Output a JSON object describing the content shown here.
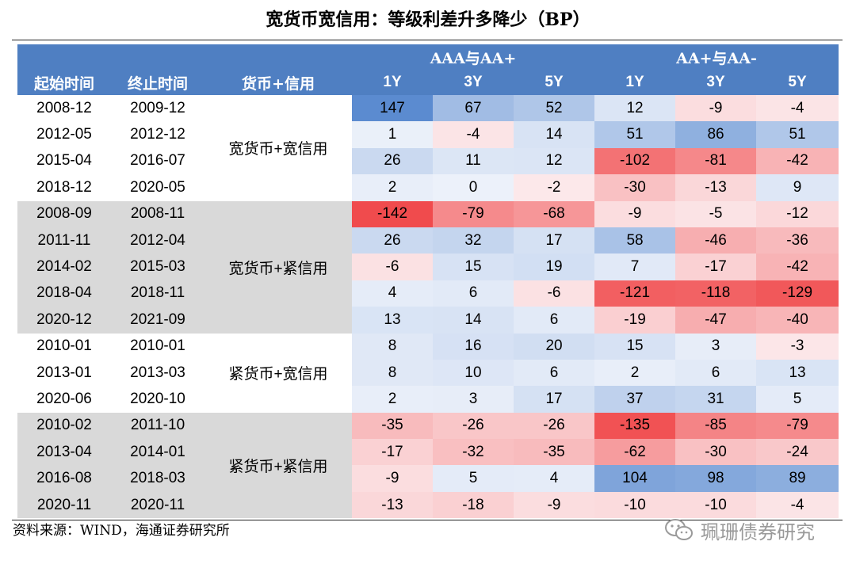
{
  "title": "宽货币宽信用：等级利差升多降少（BP）",
  "header": {
    "group1": "AAA与AA+",
    "group2": "AA+与AA-",
    "start": "起始时间",
    "end": "终止时间",
    "type": "货币+信用",
    "tenors": [
      "1Y",
      "3Y",
      "5Y",
      "1Y",
      "3Y",
      "5Y"
    ]
  },
  "groups": [
    {
      "label": "宽货币+宽信用",
      "shade": "white",
      "rows": [
        {
          "start": "2008-12",
          "end": "2009-12",
          "values": [
            147,
            67,
            52,
            12,
            -9,
            -4
          ]
        },
        {
          "start": "2012-05",
          "end": "2012-12",
          "values": [
            1,
            -4,
            14,
            51,
            86,
            51
          ]
        },
        {
          "start": "2015-04",
          "end": "2016-07",
          "values": [
            26,
            11,
            12,
            -102,
            -81,
            -42
          ]
        },
        {
          "start": "2018-12",
          "end": "2020-05",
          "values": [
            2,
            0,
            -2,
            -30,
            -13,
            9
          ]
        }
      ]
    },
    {
      "label": "宽货币+紧信用",
      "shade": "gray",
      "rows": [
        {
          "start": "2008-09",
          "end": "2008-11",
          "values": [
            -142,
            -79,
            -68,
            -9,
            -5,
            -12
          ]
        },
        {
          "start": "2011-11",
          "end": "2012-04",
          "values": [
            26,
            32,
            17,
            58,
            -46,
            -36
          ]
        },
        {
          "start": "2014-02",
          "end": "2015-03",
          "values": [
            -6,
            15,
            19,
            7,
            -17,
            -42
          ]
        },
        {
          "start": "2018-04",
          "end": "2018-11",
          "values": [
            4,
            6,
            -6,
            -121,
            -118,
            -129
          ]
        },
        {
          "start": "2020-12",
          "end": "2021-09",
          "values": [
            13,
            14,
            6,
            -19,
            -47,
            -40
          ]
        }
      ]
    },
    {
      "label": "紧货币+宽信用",
      "shade": "white",
      "rows": [
        {
          "start": "2010-01",
          "end": "2010-01",
          "values": [
            8,
            16,
            20,
            15,
            3,
            -3
          ]
        },
        {
          "start": "2013-01",
          "end": "2013-03",
          "values": [
            8,
            10,
            6,
            2,
            6,
            13
          ]
        },
        {
          "start": "2020-06",
          "end": "2020-10",
          "values": [
            2,
            3,
            17,
            37,
            31,
            5
          ]
        }
      ]
    },
    {
      "label": "紧货币+紧信用",
      "shade": "gray",
      "rows": [
        {
          "start": "2010-02",
          "end": "2011-10",
          "values": [
            -35,
            -26,
            -26,
            -135,
            -85,
            -79
          ]
        },
        {
          "start": "2013-04",
          "end": "2014-01",
          "values": [
            -17,
            -32,
            -35,
            -62,
            -30,
            -24
          ]
        },
        {
          "start": "2016-08",
          "end": "2018-03",
          "values": [
            -9,
            5,
            4,
            104,
            98,
            89
          ]
        },
        {
          "start": "2020-11",
          "end": "2020-11",
          "values": [
            -13,
            -18,
            -9,
            -10,
            -10,
            -4
          ]
        }
      ]
    }
  ],
  "colors": {
    "header_bg": "#4f7fc2",
    "positive": "#5b8bd0",
    "negative": "#f0484a",
    "gray_band": "#d9d9d9"
  },
  "source": "资料来源：WIND，海通证券研究所",
  "watermark": "珮珊债券研究",
  "watermark_icon": "wechat-icon"
}
